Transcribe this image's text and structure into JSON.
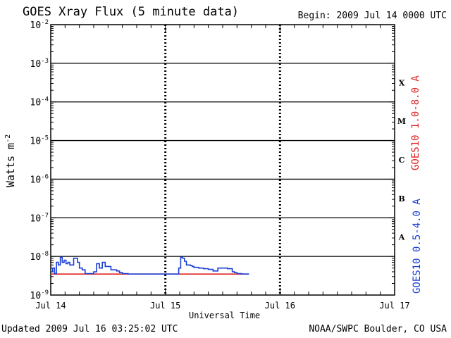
{
  "header": {
    "title": "GOES Xray Flux (5 minute data)",
    "begin_label": "Begin:  2009 Jul 14 0000 UTC"
  },
  "footer": {
    "updated": "Updated 2009 Jul 16 03:25:02 UTC",
    "credit": "NOAA/SWPC Boulder, CO USA"
  },
  "chart_data": {
    "type": "line",
    "title": "GOES Xray Flux (5 minute data)",
    "xlabel": "Universal Time",
    "ylabel": "Watts m",
    "ylabel_superscript": "-2",
    "y_scale": "log",
    "ylim": [
      1e-09,
      0.01
    ],
    "xlim": [
      "2009-07-14 00:00",
      "2009-07-17 00:00"
    ],
    "x_ticks": [
      "Jul 14",
      "Jul 15",
      "Jul 16",
      "Jul 17"
    ],
    "y_ticks": [
      {
        "base": "10",
        "exp": "-9",
        "value": 1e-09
      },
      {
        "base": "10",
        "exp": "-8",
        "value": 1e-08
      },
      {
        "base": "10",
        "exp": "-7",
        "value": 1e-07
      },
      {
        "base": "10",
        "exp": "-6",
        "value": 1e-06
      },
      {
        "base": "10",
        "exp": "-5",
        "value": 1e-05
      },
      {
        "base": "10",
        "exp": "-4",
        "value": 0.0001
      },
      {
        "base": "10",
        "exp": "-3",
        "value": 0.001
      },
      {
        "base": "10",
        "exp": "-2",
        "value": 0.01
      }
    ],
    "flare_classes": [
      {
        "label": "A",
        "value_low": 1e-08
      },
      {
        "label": "B",
        "value_low": 1e-07
      },
      {
        "label": "C",
        "value_low": 1e-06
      },
      {
        "label": "M",
        "value_low": 1e-05
      },
      {
        "label": "X",
        "value_low": 0.0001
      }
    ],
    "grid": "horizontal decade lines, dashed day separators",
    "series": [
      {
        "name": "GOES10 1.0-8.0 A",
        "color": "#e02020",
        "x_hours": [
          0,
          41.5
        ],
        "y": [
          3.5e-09,
          3.5e-09
        ]
      },
      {
        "name": "GOES10 0.5-4.0 A",
        "color": "#1a3fd6",
        "x_hours": [
          0,
          0.4,
          0.8,
          1.2,
          1.6,
          2.0,
          2.4,
          2.8,
          3.2,
          3.6,
          4.0,
          4.4,
          4.8,
          5.2,
          5.6,
          6.0,
          6.6,
          7.2,
          7.8,
          8.4,
          9.0,
          9.6,
          10.2,
          10.8,
          11.4,
          12.0,
          12.6,
          13.2,
          13.8,
          14.4,
          15.0,
          15.6,
          16.2,
          16.8,
          17.4,
          18.0,
          19.0,
          20.0,
          21.0,
          22.0,
          23.0,
          24.0,
          25.0,
          26.0,
          26.8,
          27.2,
          27.6,
          28.0,
          28.4,
          28.8,
          29.2,
          29.6,
          30.0,
          31.0,
          32.0,
          33.0,
          34.0,
          35.0,
          36.0,
          37.0,
          38.0,
          38.5,
          39.0,
          40.0,
          41.0,
          41.5
        ],
        "y": [
          4e-09,
          5e-09,
          3.6e-09,
          7e-09,
          6e-09,
          9.5e-09,
          7e-09,
          8e-09,
          6.5e-09,
          7e-09,
          6e-09,
          6e-09,
          9e-09,
          9e-09,
          7e-09,
          5e-09,
          4.5e-09,
          3.6e-09,
          3.6e-09,
          3.6e-09,
          4e-09,
          6.5e-09,
          5e-09,
          7e-09,
          5.5e-09,
          5.5e-09,
          4.5e-09,
          4.5e-09,
          4.2e-09,
          3.8e-09,
          3.6e-09,
          3.6e-09,
          3.5e-09,
          3.5e-09,
          3.5e-09,
          3.5e-09,
          3.5e-09,
          3.5e-09,
          3.5e-09,
          3.5e-09,
          3.5e-09,
          3.5e-09,
          3.5e-09,
          3.5e-09,
          5e-09,
          9.5e-09,
          9e-09,
          7.5e-09,
          6e-09,
          6e-09,
          5.8e-09,
          5.5e-09,
          5.2e-09,
          5e-09,
          4.8e-09,
          4.6e-09,
          4.2e-09,
          5e-09,
          5e-09,
          4.8e-09,
          4e-09,
          3.8e-09,
          3.6e-09,
          3.5e-09,
          3.5e-09,
          3.5e-09
        ]
      }
    ]
  }
}
